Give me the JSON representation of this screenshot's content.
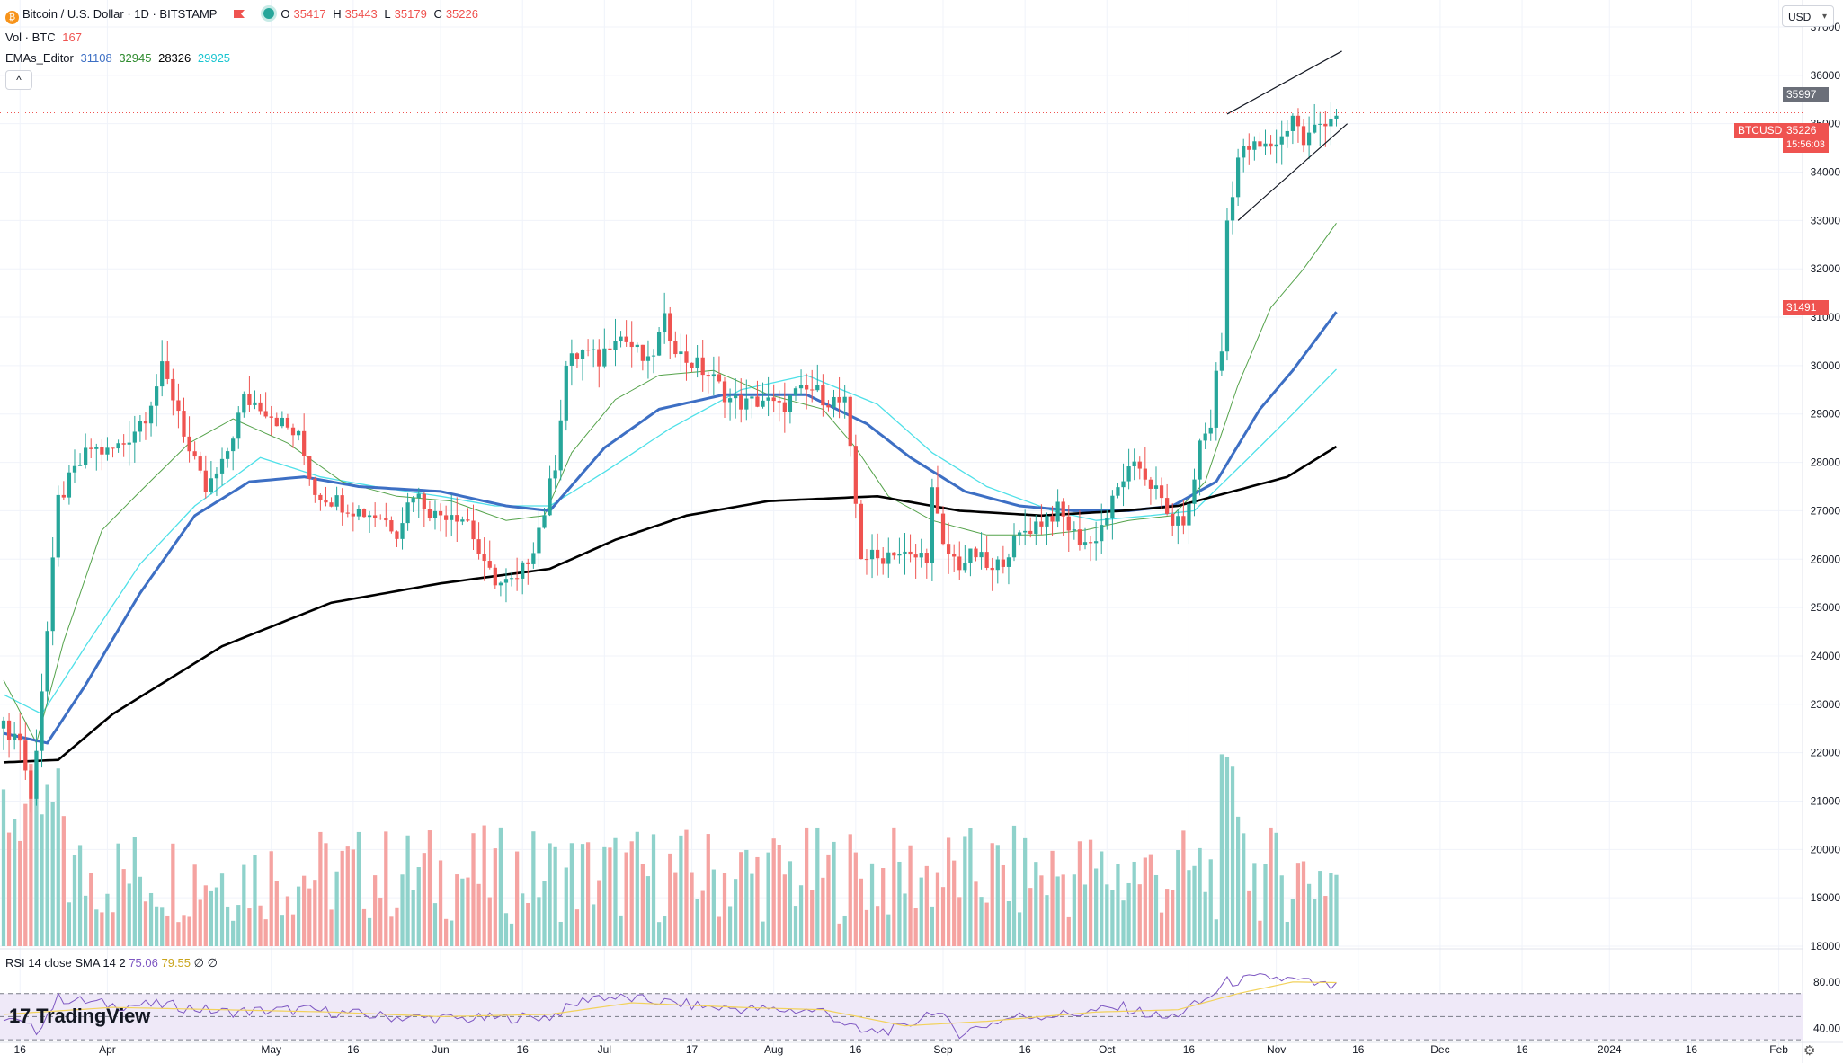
{
  "header": {
    "symbol_title": "Bitcoin / U.S. Dollar · 1D · BITSTAMP",
    "ohlc": {
      "o_label": "O",
      "o": "35417",
      "h_label": "H",
      "h": "35443",
      "l_label": "L",
      "l": "35179",
      "c_label": "C",
      "c": "35226"
    },
    "vol_label": "Vol · BTC",
    "vol_value": "167",
    "ema_label": "EMAs_Editor",
    "ema_values": [
      "31108",
      "32945",
      "28326",
      "29925"
    ],
    "collapse_glyph": "^",
    "currency": "USD"
  },
  "rsi": {
    "label": "RSI 14 close SMA 14 2",
    "value": "75.06",
    "sma": "79.55",
    "extra1": "∅",
    "extra2": "∅"
  },
  "branding": {
    "logo_text": "TradingView",
    "logo_mark": "17"
  },
  "price_tags": {
    "symbol": "BTCUSD",
    "current": "35226",
    "countdown": "15:56:03",
    "high_marker": "35997",
    "ema_marker": "31491"
  },
  "colors": {
    "up": "#26a69a",
    "down": "#ef5350",
    "up_vol": "#8fd2cb",
    "down_vol": "#f5a3a1",
    "ema_blue": "#3d6fc4",
    "ema_green": "#55a34b",
    "ema_cyan": "#4fe0e8",
    "ema_black": "#000000",
    "rsi_line": "#7e57c2",
    "rsi_sma": "#f2d25b",
    "rsi_band": "#efe9f8",
    "grid": "#f0f3fa"
  },
  "chart_data": {
    "type": "candlestick",
    "ylim": [
      18000,
      37000
    ],
    "y_ticks": [
      18000,
      19000,
      20000,
      21000,
      22000,
      23000,
      24000,
      25000,
      26000,
      27000,
      28000,
      29000,
      30000,
      31000,
      32000,
      33000,
      34000,
      35000,
      36000,
      37000
    ],
    "rsi_ticks": [
      "80.00",
      "40.00"
    ],
    "x_ticks": [
      {
        "label": "16",
        "bar": 3
      },
      {
        "label": "Apr",
        "bar": 19
      },
      {
        "label": "May",
        "bar": 49
      },
      {
        "label": "16",
        "bar": 64
      },
      {
        "label": "Jun",
        "bar": 80
      },
      {
        "label": "16",
        "bar": 95
      },
      {
        "label": "Jul",
        "bar": 110
      },
      {
        "label": "17",
        "bar": 126
      },
      {
        "label": "Aug",
        "bar": 141
      },
      {
        "label": "16",
        "bar": 156
      },
      {
        "label": "Sep",
        "bar": 172
      },
      {
        "label": "16",
        "bar": 187
      },
      {
        "label": "Oct",
        "bar": 202
      },
      {
        "label": "16",
        "bar": 217
      },
      {
        "label": "Nov",
        "bar": 233
      },
      {
        "label": "16",
        "bar": 248
      },
      {
        "label": "Dec",
        "bar": 263
      },
      {
        "label": "16",
        "bar": 278
      },
      {
        "label": "2024",
        "bar": 294
      },
      {
        "label": "16",
        "bar": 309
      },
      {
        "label": "Feb",
        "bar": 325
      }
    ],
    "price_path": [
      [
        0,
        22500
      ],
      [
        3,
        22300
      ],
      [
        5,
        21000
      ],
      [
        8,
        24500
      ],
      [
        10,
        27200
      ],
      [
        13,
        27800
      ],
      [
        16,
        28300
      ],
      [
        19,
        28200
      ],
      [
        22,
        28400
      ],
      [
        26,
        29000
      ],
      [
        29,
        29900
      ],
      [
        32,
        29100
      ],
      [
        34,
        28200
      ],
      [
        37,
        27400
      ],
      [
        40,
        27900
      ],
      [
        44,
        29300
      ],
      [
        47,
        29200
      ],
      [
        50,
        28900
      ],
      [
        54,
        28500
      ],
      [
        57,
        27400
      ],
      [
        61,
        27200
      ],
      [
        65,
        27000
      ],
      [
        69,
        26900
      ],
      [
        72,
        26600
      ],
      [
        75,
        27400
      ],
      [
        79,
        26900
      ],
      [
        82,
        27000
      ],
      [
        85,
        26800
      ],
      [
        88,
        25800
      ],
      [
        91,
        25500
      ],
      [
        94,
        25500
      ],
      [
        97,
        26300
      ],
      [
        99,
        27000
      ],
      [
        101,
        28000
      ],
      [
        103,
        30000
      ],
      [
        106,
        30300
      ],
      [
        109,
        30100
      ],
      [
        112,
        30700
      ],
      [
        115,
        30400
      ],
      [
        118,
        30000
      ],
      [
        121,
        30900
      ],
      [
        124,
        30200
      ],
      [
        127,
        30000
      ],
      [
        130,
        29700
      ],
      [
        133,
        29300
      ],
      [
        136,
        29200
      ],
      [
        139,
        29300
      ],
      [
        142,
        29100
      ],
      [
        145,
        29400
      ],
      [
        148,
        29500
      ],
      [
        151,
        29300
      ],
      [
        154,
        29200
      ],
      [
        157,
        26100
      ],
      [
        160,
        26000
      ],
      [
        163,
        26200
      ],
      [
        166,
        26000
      ],
      [
        169,
        26100
      ],
      [
        170,
        27400
      ],
      [
        172,
        26200
      ],
      [
        175,
        25900
      ],
      [
        178,
        26100
      ],
      [
        181,
        25700
      ],
      [
        184,
        26200
      ],
      [
        187,
        26600
      ],
      [
        190,
        26800
      ],
      [
        193,
        27000
      ],
      [
        196,
        26500
      ],
      [
        199,
        26300
      ],
      [
        202,
        26900
      ],
      [
        205,
        27700
      ],
      [
        208,
        27900
      ],
      [
        211,
        27400
      ],
      [
        213,
        26900
      ],
      [
        215,
        26700
      ],
      [
        217,
        27000
      ],
      [
        219,
        28400
      ],
      [
        221,
        28800
      ],
      [
        222,
        29800
      ],
      [
        223,
        30300
      ],
      [
        224,
        33000
      ],
      [
        226,
        34300
      ],
      [
        228,
        34500
      ],
      [
        231,
        34500
      ],
      [
        234,
        34700
      ],
      [
        236,
        35200
      ],
      [
        238,
        34600
      ],
      [
        240,
        34900
      ],
      [
        242,
        35100
      ],
      [
        244,
        35226
      ]
    ],
    "ema_black": [
      [
        0,
        21800
      ],
      [
        10,
        21850
      ],
      [
        20,
        22800
      ],
      [
        40,
        24200
      ],
      [
        60,
        25100
      ],
      [
        80,
        25500
      ],
      [
        100,
        25800
      ],
      [
        112,
        26400
      ],
      [
        125,
        26900
      ],
      [
        140,
        27200
      ],
      [
        160,
        27300
      ],
      [
        175,
        27000
      ],
      [
        190,
        26900
      ],
      [
        205,
        27000
      ],
      [
        215,
        27100
      ],
      [
        225,
        27400
      ],
      [
        235,
        27700
      ],
      [
        244,
        28326
      ]
    ],
    "ema_cyan": [
      [
        0,
        23200
      ],
      [
        7,
        22800
      ],
      [
        15,
        24200
      ],
      [
        25,
        25900
      ],
      [
        35,
        27100
      ],
      [
        47,
        28100
      ],
      [
        58,
        27700
      ],
      [
        68,
        27500
      ],
      [
        80,
        27300
      ],
      [
        90,
        27100
      ],
      [
        100,
        27100
      ],
      [
        110,
        27800
      ],
      [
        122,
        28700
      ],
      [
        135,
        29500
      ],
      [
        147,
        29800
      ],
      [
        160,
        29200
      ],
      [
        170,
        28200
      ],
      [
        180,
        27500
      ],
      [
        192,
        27000
      ],
      [
        200,
        26800
      ],
      [
        210,
        26900
      ],
      [
        218,
        27000
      ],
      [
        228,
        28100
      ],
      [
        236,
        29000
      ],
      [
        244,
        29925
      ]
    ],
    "ema_blue": [
      [
        0,
        22400
      ],
      [
        8,
        22200
      ],
      [
        15,
        23400
      ],
      [
        25,
        25300
      ],
      [
        35,
        26900
      ],
      [
        45,
        27600
      ],
      [
        55,
        27700
      ],
      [
        65,
        27500
      ],
      [
        80,
        27400
      ],
      [
        92,
        27100
      ],
      [
        100,
        27000
      ],
      [
        110,
        28300
      ],
      [
        120,
        29100
      ],
      [
        132,
        29400
      ],
      [
        147,
        29400
      ],
      [
        158,
        28800
      ],
      [
        166,
        28100
      ],
      [
        176,
        27400
      ],
      [
        186,
        27100
      ],
      [
        196,
        27000
      ],
      [
        206,
        27000
      ],
      [
        214,
        27100
      ],
      [
        222,
        27600
      ],
      [
        230,
        29100
      ],
      [
        236,
        29900
      ],
      [
        244,
        31108
      ]
    ],
    "ema_green": [
      [
        0,
        23500
      ],
      [
        6,
        22200
      ],
      [
        11,
        24300
      ],
      [
        18,
        26600
      ],
      [
        25,
        27400
      ],
      [
        34,
        28400
      ],
      [
        42,
        28900
      ],
      [
        52,
        28400
      ],
      [
        62,
        27600
      ],
      [
        72,
        27300
      ],
      [
        82,
        27200
      ],
      [
        92,
        26800
      ],
      [
        99,
        26900
      ],
      [
        104,
        28200
      ],
      [
        112,
        29300
      ],
      [
        120,
        29800
      ],
      [
        130,
        29900
      ],
      [
        140,
        29400
      ],
      [
        150,
        29100
      ],
      [
        156,
        28300
      ],
      [
        162,
        27300
      ],
      [
        170,
        26800
      ],
      [
        180,
        26500
      ],
      [
        190,
        26500
      ],
      [
        198,
        26600
      ],
      [
        206,
        26800
      ],
      [
        214,
        26900
      ],
      [
        220,
        27600
      ],
      [
        226,
        29600
      ],
      [
        232,
        31200
      ],
      [
        238,
        32000
      ],
      [
        244,
        32945
      ]
    ],
    "rsi_path": [
      [
        0,
        50
      ],
      [
        6,
        38
      ],
      [
        10,
        66
      ],
      [
        20,
        60
      ],
      [
        30,
        60
      ],
      [
        40,
        54
      ],
      [
        55,
        56
      ],
      [
        70,
        50
      ],
      [
        85,
        48
      ],
      [
        100,
        50
      ],
      [
        108,
        68
      ],
      [
        118,
        64
      ],
      [
        130,
        58
      ],
      [
        140,
        56
      ],
      [
        150,
        55
      ],
      [
        157,
        36
      ],
      [
        165,
        40
      ],
      [
        170,
        56
      ],
      [
        175,
        36
      ],
      [
        185,
        50
      ],
      [
        195,
        52
      ],
      [
        205,
        58
      ],
      [
        213,
        48
      ],
      [
        220,
        64
      ],
      [
        224,
        80
      ],
      [
        232,
        84
      ],
      [
        238,
        80
      ],
      [
        244,
        75
      ]
    ],
    "rsi_sma_path": [
      [
        0,
        52
      ],
      [
        20,
        58
      ],
      [
        40,
        56
      ],
      [
        60,
        54
      ],
      [
        80,
        50
      ],
      [
        100,
        52
      ],
      [
        115,
        62
      ],
      [
        135,
        58
      ],
      [
        150,
        56
      ],
      [
        165,
        42
      ],
      [
        180,
        46
      ],
      [
        200,
        54
      ],
      [
        215,
        56
      ],
      [
        226,
        70
      ],
      [
        236,
        80
      ],
      [
        244,
        79.5
      ]
    ],
    "channel_upper": [
      [
        224,
        35200
      ],
      [
        245,
        36500
      ]
    ],
    "channel_lower": [
      [
        226,
        33000
      ],
      [
        246,
        35000
      ]
    ]
  }
}
